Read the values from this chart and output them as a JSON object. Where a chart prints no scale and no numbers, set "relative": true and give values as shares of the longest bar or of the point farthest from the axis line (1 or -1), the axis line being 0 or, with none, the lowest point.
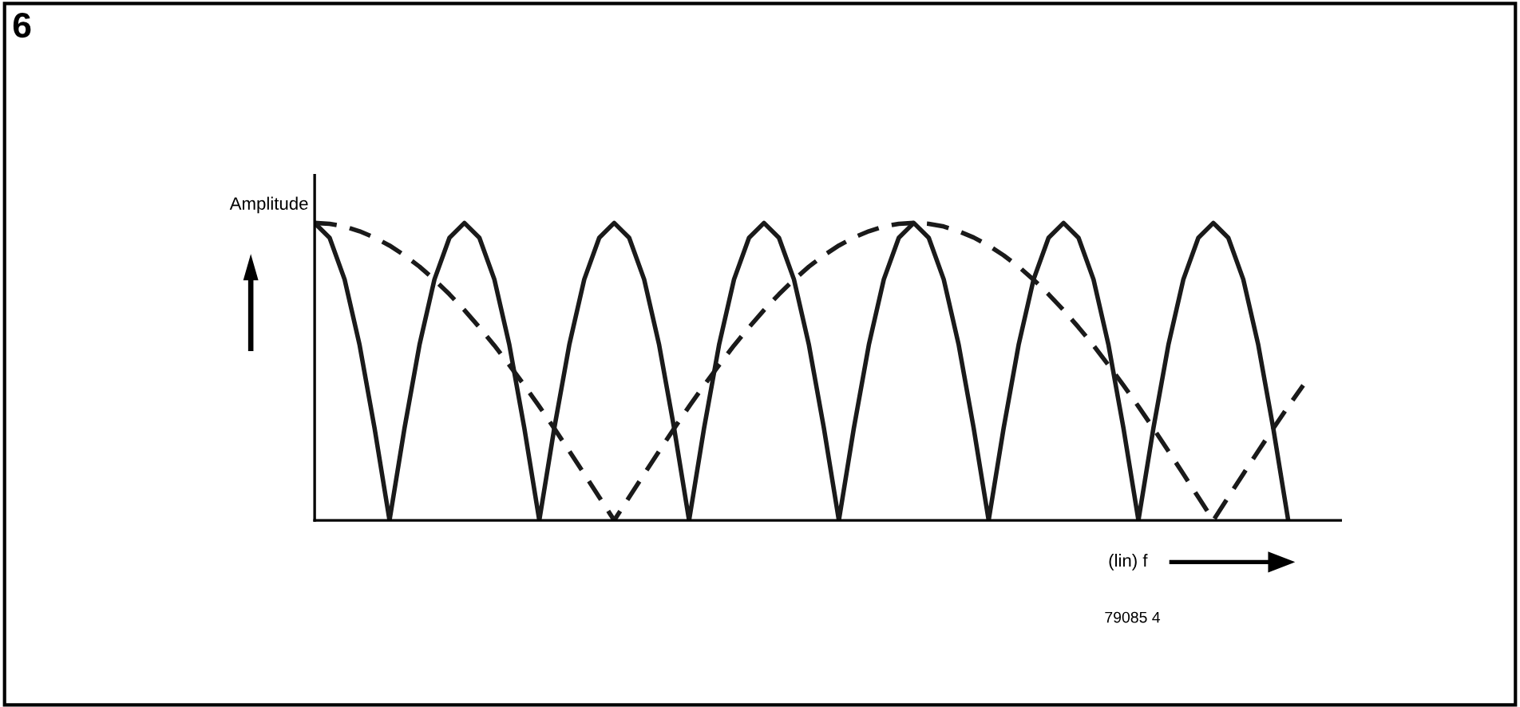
{
  "chart_data": {
    "type": "line",
    "title": "6",
    "ylabel": "Amplitude",
    "xlabel": "(lin) f",
    "annotations": [
      "79085 4"
    ],
    "relative": true,
    "legend": false,
    "grid": false,
    "marker": "none",
    "categories": [
      null,
      null,
      null,
      null,
      null,
      null,
      null,
      null,
      null,
      null,
      null,
      null,
      null,
      null,
      null,
      null,
      null,
      null,
      null,
      null,
      null,
      null,
      null,
      null,
      null,
      null,
      null,
      null,
      null,
      null,
      null,
      null,
      null,
      null,
      null,
      null,
      null,
      null,
      null,
      null,
      null,
      null,
      null,
      null,
      null,
      null,
      null,
      null,
      null,
      null,
      null,
      null,
      null,
      null,
      null,
      null,
      null,
      null,
      null,
      null,
      null,
      null,
      null,
      null,
      null,
      null,
      null
    ],
    "series": [
      {
        "color": "#1a1a1a",
        "line_style": "solid",
        "values": [
          1,
          0.95,
          0.81,
          0.59,
          0.31,
          0,
          0.31,
          0.59,
          0.81,
          0.95,
          1,
          0.95,
          0.81,
          0.59,
          0.31,
          0,
          0.31,
          0.59,
          0.81,
          0.95,
          1,
          0.95,
          0.81,
          0.59,
          0.31,
          0,
          0.31,
          0.59,
          0.81,
          0.95,
          1,
          0.95,
          0.81,
          0.59,
          0.31,
          0,
          0.31,
          0.59,
          0.81,
          0.95,
          1,
          0.95,
          0.81,
          0.59,
          0.31,
          0,
          0.31,
          0.59,
          0.81,
          0.95,
          1,
          0.95,
          0.81,
          0.59,
          0.31,
          0,
          0.31,
          0.59,
          0.81,
          0.95,
          1,
          0.95,
          0.81,
          0.59,
          0.31,
          0,
          null
        ]
      },
      {
        "color": "#1a1a1a",
        "line_style": "dashed",
        "values": [
          1,
          0.997,
          0.988,
          0.972,
          0.951,
          0.924,
          0.891,
          0.853,
          0.809,
          0.76,
          0.707,
          0.649,
          0.588,
          0.522,
          0.454,
          0.383,
          0.309,
          0.233,
          0.156,
          0.078,
          0,
          0.078,
          0.156,
          0.233,
          0.309,
          0.383,
          0.454,
          0.522,
          0.588,
          0.649,
          0.707,
          0.76,
          0.809,
          0.853,
          0.891,
          0.924,
          0.951,
          0.972,
          0.988,
          0.997,
          1,
          0.997,
          0.988,
          0.972,
          0.951,
          0.924,
          0.891,
          0.853,
          0.809,
          0.76,
          0.707,
          0.649,
          0.588,
          0.522,
          0.454,
          0.383,
          0.309,
          0.233,
          0.156,
          0.078,
          0,
          0.078,
          0.156,
          0.233,
          0.309,
          0.383,
          0.454
        ]
      }
    ]
  }
}
